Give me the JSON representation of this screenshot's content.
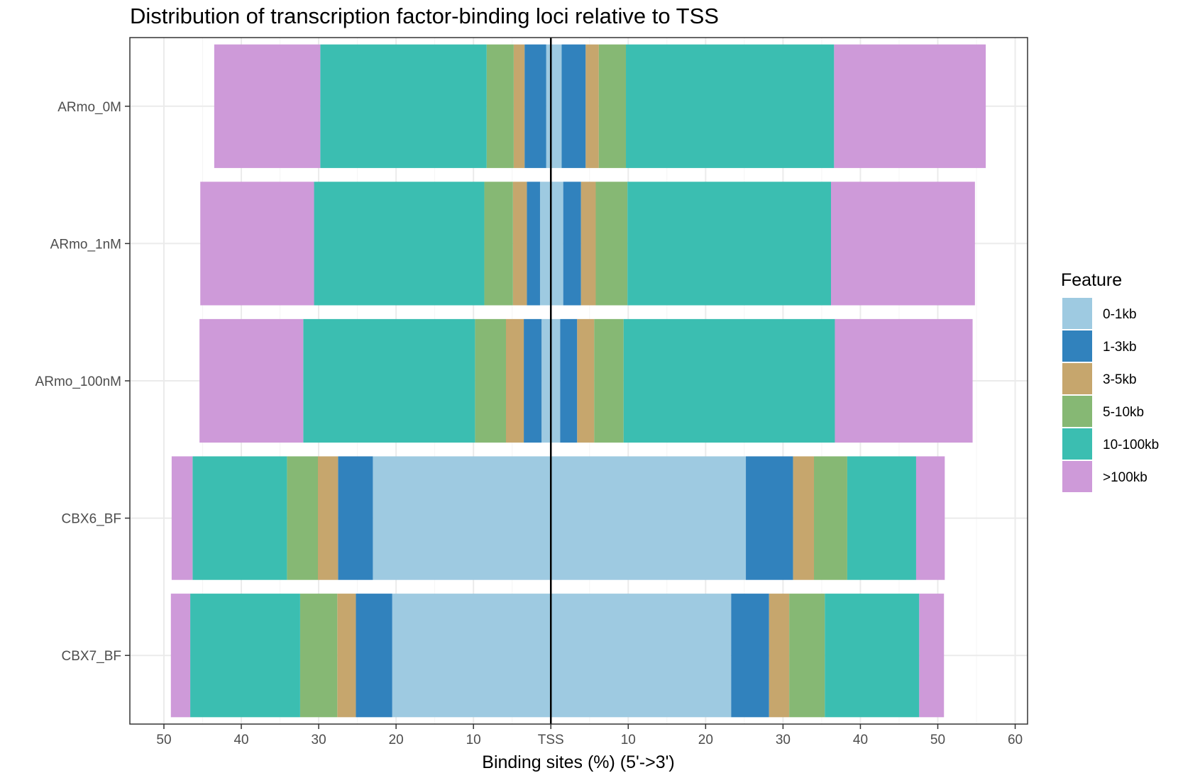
{
  "chart_data": {
    "type": "bar",
    "orientation": "horizontal",
    "stacked": true,
    "diverging": true,
    "title": "Distribution of transcription factor-binding loci relative to TSS",
    "xlabel": "Binding sites (%) (5'->3')",
    "ylabel": "",
    "xlim": [
      -50,
      60
    ],
    "x_ticks": [
      -50,
      -40,
      -30,
      -20,
      -10,
      0,
      10,
      20,
      30,
      40,
      50,
      60
    ],
    "x_tick_labels": [
      "50",
      "40",
      "30",
      "20",
      "10",
      "TSS",
      "10",
      "20",
      "30",
      "40",
      "50",
      "60"
    ],
    "grid": true,
    "legend_position": "right",
    "legend_title": "Feature",
    "categories": [
      "ARmo_0M",
      "ARmo_1nM",
      "ARmo_100nM",
      "CBX6_BF",
      "CBX7_BF"
    ],
    "series": [
      {
        "name": "0-1kb",
        "color": "#9ecae1",
        "upstream": [
          0.6,
          1.4,
          1.2,
          23.0,
          20.5
        ],
        "downstream": [
          1.4,
          1.6,
          1.2,
          25.2,
          23.3
        ]
      },
      {
        "name": "1-3kb",
        "color": "#3182bd",
        "upstream": [
          2.8,
          1.7,
          2.3,
          4.5,
          4.7
        ],
        "downstream": [
          3.1,
          2.3,
          2.2,
          6.1,
          4.9
        ]
      },
      {
        "name": "3-5kb",
        "color": "#c6a66d",
        "upstream": [
          1.4,
          1.8,
          2.3,
          2.6,
          2.4
        ],
        "downstream": [
          1.7,
          1.9,
          2.2,
          2.7,
          2.6
        ]
      },
      {
        "name": "5-10kb",
        "color": "#86b874",
        "upstream": [
          3.5,
          3.7,
          4.0,
          4.0,
          4.8
        ],
        "downstream": [
          3.5,
          4.1,
          3.8,
          4.3,
          4.6
        ]
      },
      {
        "name": "10-100kb",
        "color": "#3bbeb1",
        "upstream": [
          21.5,
          22.0,
          22.2,
          12.2,
          14.2
        ],
        "downstream": [
          26.9,
          26.3,
          27.3,
          8.9,
          12.2
        ]
      },
      {
        "name": ">100kb",
        "color": "#ce9ad9",
        "upstream": [
          13.7,
          14.7,
          13.4,
          2.7,
          2.5
        ],
        "downstream": [
          19.6,
          18.6,
          17.8,
          3.7,
          3.2
        ]
      }
    ]
  },
  "colors": {
    "panel_border": "#333333",
    "grid_major": "#ebebeb",
    "grid_minor": "#f5f5f5",
    "tss_line": "#000000",
    "tick_label": "#4d4d4d"
  }
}
